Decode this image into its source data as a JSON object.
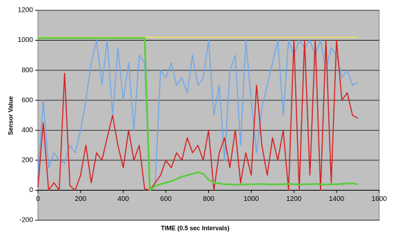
{
  "chart_data": {
    "type": "line",
    "x_label": "TIME (0.5 sec Intervals)",
    "y_label": "Sensor Value",
    "xlim": [
      0,
      1600
    ],
    "xticks": [
      0,
      200,
      400,
      600,
      800,
      1000,
      1200,
      1400,
      1600
    ],
    "ylim": [
      -200,
      1200
    ],
    "yticks": [
      -200,
      0,
      200,
      400,
      600,
      800,
      1000,
      1200
    ],
    "grid": true,
    "x": [
      0,
      25,
      50,
      75,
      100,
      125,
      150,
      175,
      200,
      225,
      250,
      275,
      300,
      325,
      350,
      375,
      400,
      425,
      450,
      475,
      500,
      525,
      550,
      575,
      600,
      625,
      650,
      675,
      700,
      725,
      750,
      775,
      800,
      825,
      850,
      875,
      900,
      925,
      950,
      975,
      1000,
      1025,
      1050,
      1075,
      1100,
      1125,
      1150,
      1175,
      1200,
      1225,
      1250,
      1275,
      1300,
      1325,
      1350,
      1375,
      1400,
      1425,
      1450,
      1475,
      1500
    ],
    "series": [
      {
        "color": "#f0e060",
        "values": [
          1020,
          1020,
          1020,
          1020,
          1020,
          1020,
          1020,
          1020,
          1020,
          1020,
          1020,
          1020,
          1020,
          1020,
          1020,
          1020,
          1020,
          1020,
          1020,
          1020,
          1020,
          1020,
          1020,
          1020,
          1020,
          1020,
          1020,
          1020,
          1020,
          1020,
          1020,
          1020,
          1020,
          1020,
          1020,
          1020,
          1020,
          1020,
          1020,
          1020,
          1020,
          1020,
          1020,
          1020,
          1020,
          1020,
          1020,
          1020,
          1020,
          1020,
          1020,
          1020,
          1020,
          1020,
          1020,
          1020,
          1020,
          1020,
          1020,
          1020,
          1020
        ]
      },
      {
        "color": "#6fa8e8",
        "values": [
          100,
          600,
          150,
          250,
          200,
          180,
          300,
          250,
          400,
          600,
          850,
          1000,
          700,
          1000,
          500,
          950,
          600,
          850,
          400,
          900,
          850,
          0,
          50,
          800,
          750,
          850,
          700,
          750,
          650,
          900,
          700,
          750,
          1000,
          500,
          700,
          200,
          800,
          900,
          300,
          1000,
          600,
          250,
          550,
          700,
          850,
          1000,
          500,
          1000,
          900,
          1000,
          950,
          1000,
          900,
          1000,
          800,
          950,
          900,
          750,
          800,
          700,
          720
        ]
      },
      {
        "color": "#d42020",
        "values": [
          20,
          450,
          0,
          50,
          0,
          780,
          30,
          0,
          100,
          300,
          50,
          250,
          200,
          350,
          500,
          300,
          150,
          400,
          200,
          300,
          10,
          0,
          50,
          100,
          200,
          150,
          250,
          200,
          350,
          250,
          300,
          200,
          400,
          0,
          250,
          350,
          150,
          400,
          50,
          250,
          100,
          700,
          300,
          100,
          350,
          200,
          400,
          0,
          1000,
          0,
          1000,
          100,
          1000,
          0,
          1000,
          50,
          1000,
          600,
          650,
          500,
          480
        ]
      },
      {
        "color": "#5ccc3c",
        "values": [
          1015,
          1015,
          1015,
          1015,
          1015,
          1015,
          1015,
          1015,
          1015,
          1015,
          1015,
          1015,
          1015,
          1015,
          1015,
          1015,
          1015,
          1015,
          1015,
          1015,
          1015,
          0,
          30,
          40,
          50,
          60,
          75,
          90,
          100,
          110,
          120,
          110,
          70,
          50,
          45,
          40,
          40,
          35,
          40,
          38,
          40,
          40,
          42,
          40,
          38,
          40,
          40,
          42,
          40,
          38,
          40,
          40,
          42,
          40,
          38,
          40,
          40,
          42,
          45,
          45,
          40
        ]
      }
    ]
  }
}
